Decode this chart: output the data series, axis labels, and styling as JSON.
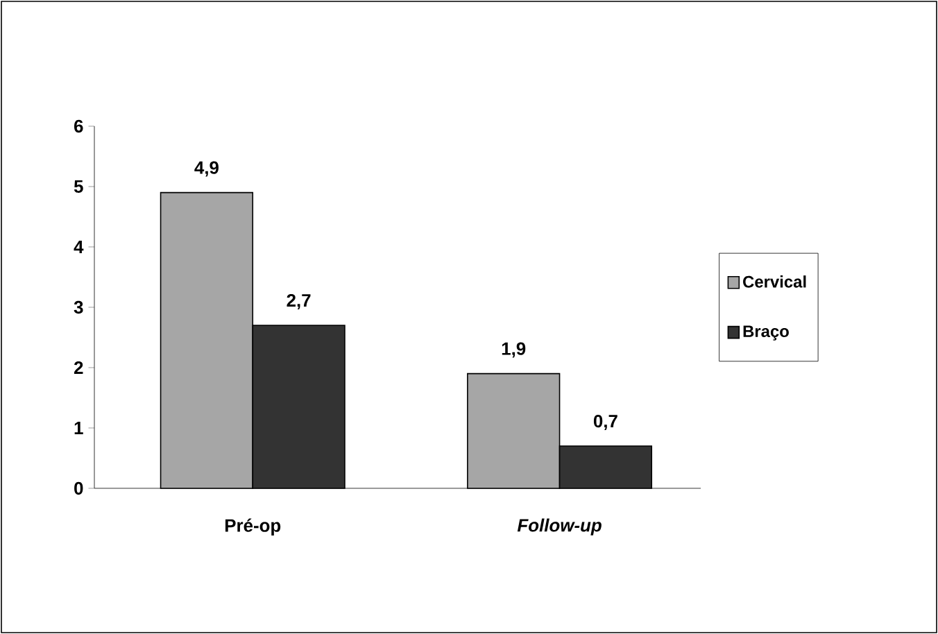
{
  "chart_data": {
    "type": "bar",
    "categories": [
      "Pré-op",
      "*Follow-up*"
    ],
    "series": [
      {
        "name": "Cervical",
        "color": "#a6a6a6",
        "values": [
          4.9,
          1.9
        ],
        "value_labels": [
          "4,9",
          "1,9"
        ]
      },
      {
        "name": "Braço",
        "color": "#333333",
        "values": [
          2.7,
          0.7
        ],
        "value_labels": [
          "2,7",
          "0,7"
        ]
      }
    ],
    "ylim": [
      0,
      6
    ],
    "yticks": [
      0,
      1,
      2,
      3,
      4,
      5,
      6
    ],
    "grid": false,
    "legend": "right"
  }
}
